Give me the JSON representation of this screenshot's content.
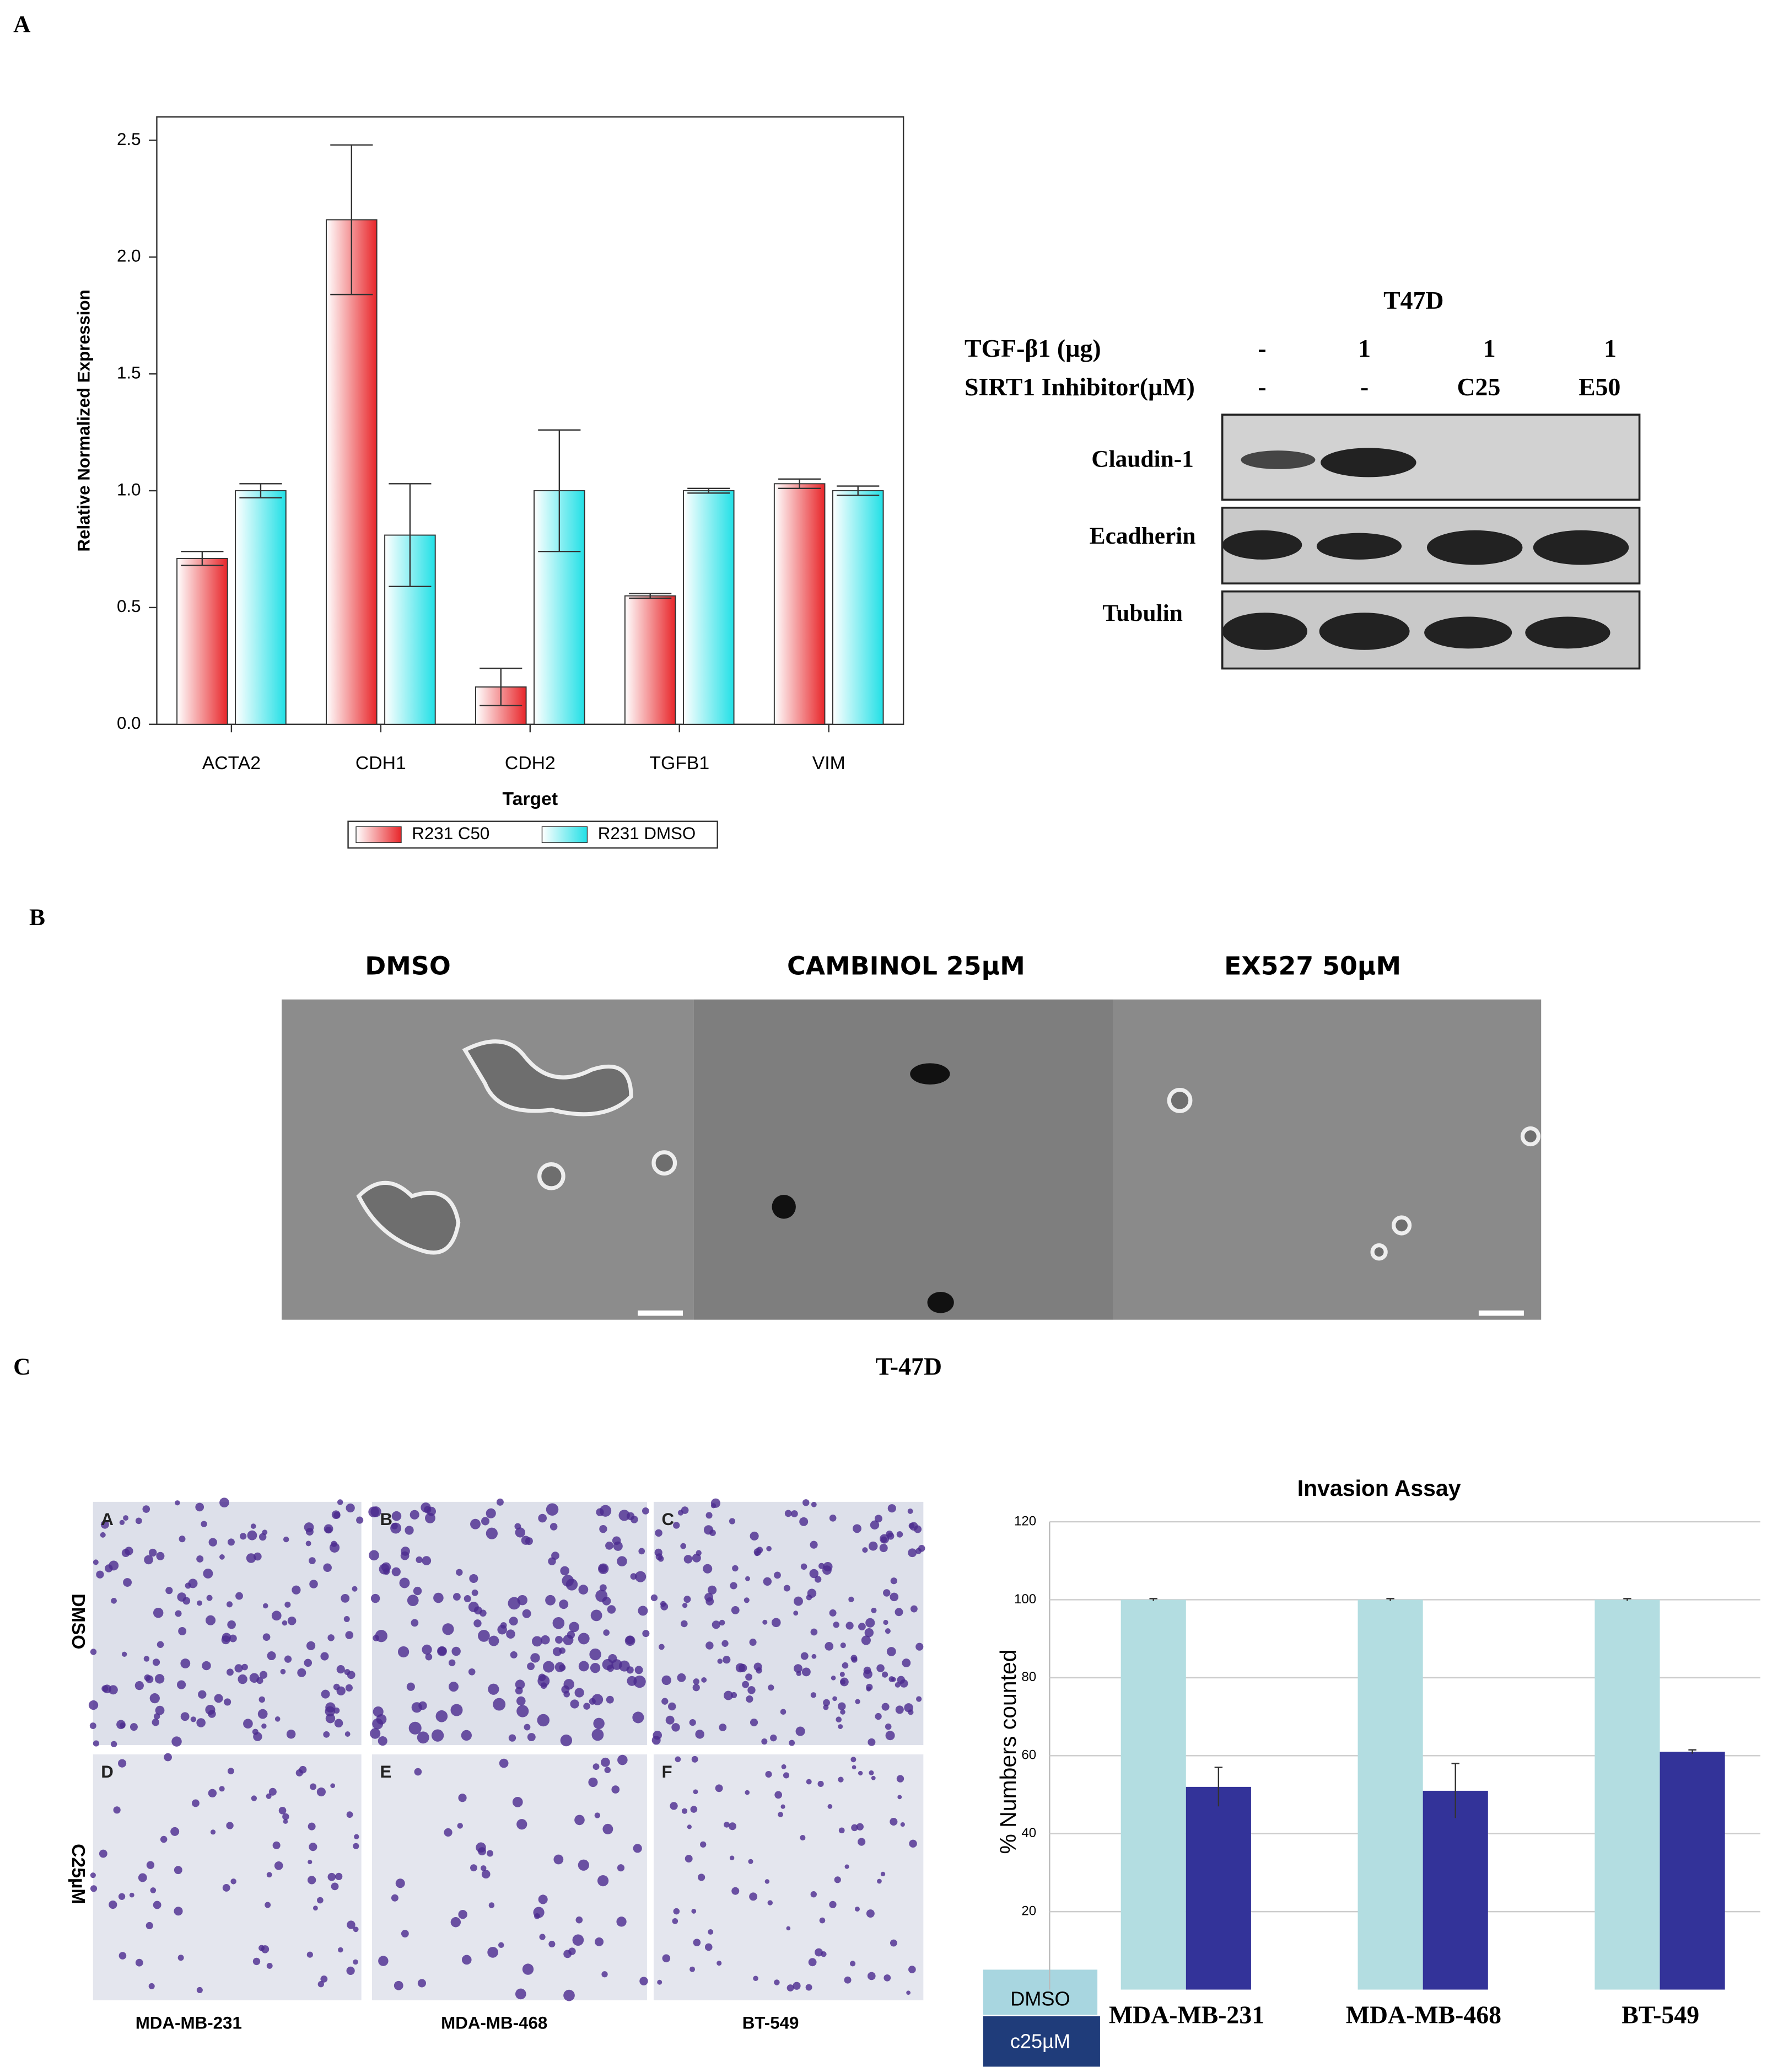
{
  "panel_labels": [
    "A",
    "B",
    "C"
  ],
  "chart_data": [
    {
      "type": "bar",
      "x_label": "Target",
      "y_label": "Relative Normalized Expression",
      "categories": [
        "ACTA2",
        "CDH1",
        "CDH2",
        "TGFB1",
        "VIM"
      ],
      "series": [
        {
          "name": "R231 C50",
          "color": "#e8262a",
          "values": [
            0.71,
            2.16,
            0.16,
            0.55,
            1.03
          ],
          "errors": [
            0.03,
            0.32,
            0.08,
            0.01,
            0.02
          ]
        },
        {
          "name": "R231 DMSO",
          "color": "#22e0e6",
          "values": [
            1.0,
            0.81,
            1.0,
            1.0,
            1.0
          ],
          "errors": [
            0.03,
            0.22,
            0.26,
            0.01,
            0.02
          ]
        }
      ],
      "ylim": [
        0,
        2.6
      ],
      "yticks": [
        {
          "value": 0,
          "label": "0.0"
        },
        {
          "value": 0.5,
          "label": "0.5"
        },
        {
          "value": 1,
          "label": "1.0"
        },
        {
          "value": 1.5,
          "label": "1.5"
        },
        {
          "value": 2,
          "label": "2.0"
        },
        {
          "value": 2.5,
          "label": "2.5"
        }
      ],
      "grid": false
    },
    {
      "type": "bar",
      "title": "Invasion Assay",
      "y_label": "% Numbers counted",
      "categories": [
        "MDA-MB-231",
        "MDA-MB-468",
        "BT-549"
      ],
      "series": [
        {
          "name": "DMSO",
          "color": "#b3dde1",
          "values": [
            100,
            100,
            100
          ],
          "errors": [
            0.3,
            0.3,
            0.3
          ]
        },
        {
          "name": "c25µM",
          "color": "#333399",
          "values": [
            52,
            51,
            61
          ],
          "errors": [
            5,
            7,
            0.5
          ]
        }
      ],
      "ylim": [
        0,
        120
      ],
      "yticks": [
        20,
        40,
        60,
        80,
        100,
        120
      ],
      "grid": true
    }
  ],
  "western_blot": {
    "title": "T47D",
    "conditions": [
      {
        "label": "TGF-β1  (µg)",
        "lanes": [
          "-",
          "1",
          "1",
          "1"
        ]
      },
      {
        "label": "SIRT1 Inhibitor(µM)",
        "lanes": [
          "-",
          "-",
          "C25",
          "E50"
        ]
      }
    ],
    "bands": [
      "Claudin-1",
      "Ecadherin",
      "Tubulin"
    ]
  },
  "morphology": {
    "labels": [
      "DMSO",
      "CAMBINOL 25µM",
      "EX527 50µM"
    ],
    "caption": "T-47D"
  },
  "invasion_images": {
    "panel_labels": [
      "A",
      "B",
      "C",
      "D",
      "E",
      "F"
    ],
    "row_labels": [
      "DMSO",
      "C25µM"
    ],
    "column_labels": [
      "MDA-MB-231",
      "MDA-MB-468",
      "BT-549"
    ]
  }
}
